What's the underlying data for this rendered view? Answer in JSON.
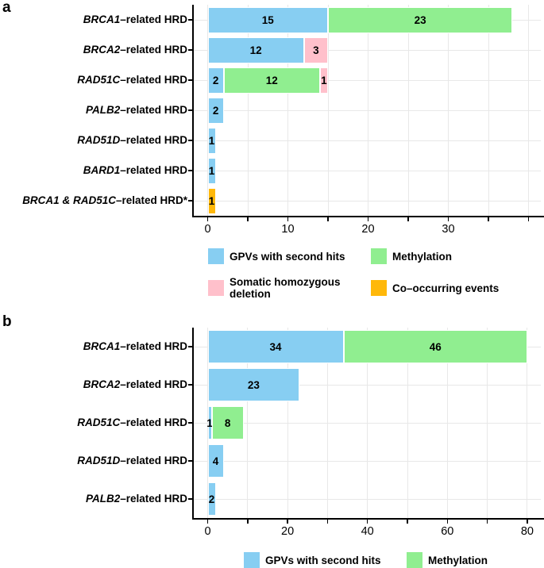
{
  "chart_data": [
    {
      "type": "bar",
      "panel": "a",
      "orientation": "horizontal",
      "stacked": true,
      "grid": true,
      "legend_position": "bottom",
      "categories": [
        {
          "gene": "BRCA1",
          "suffix": "–related HRD"
        },
        {
          "gene": "BRCA2",
          "suffix": "–related HRD"
        },
        {
          "gene": "RAD51C",
          "suffix": "–related HRD"
        },
        {
          "gene": "PALB2",
          "suffix": "–related HRD"
        },
        {
          "gene": "RAD51D",
          "suffix": "–related HRD"
        },
        {
          "gene": "BARD1",
          "suffix": "–related HRD"
        },
        {
          "gene": "BRCA1 & RAD51C",
          "suffix": "–related HRD*"
        }
      ],
      "series": [
        {
          "name": "GPVs with second hits",
          "color": "#87CEF2",
          "values": [
            15,
            12,
            2,
            2,
            1,
            1,
            0
          ]
        },
        {
          "name": "Methylation",
          "color": "#90EE90",
          "values": [
            23,
            0,
            12,
            0,
            0,
            0,
            0
          ]
        },
        {
          "name": "Somatic homozygous deletion",
          "color": "#FFC0CB",
          "values": [
            0,
            3,
            1,
            0,
            0,
            0,
            0
          ]
        },
        {
          "name": "Co–occurring events",
          "color": "#FFB80A",
          "values": [
            0,
            0,
            0,
            0,
            0,
            0,
            1
          ]
        }
      ],
      "x_tick_labels": [
        0,
        10,
        20,
        30
      ],
      "x_grid_step": 5,
      "x_max": 40,
      "xlim": [
        0,
        41.5
      ],
      "legend": [
        {
          "label": "GPVs with second hits",
          "color": "#87CEF2"
        },
        {
          "label": "Methylation",
          "color": "#90EE90"
        },
        {
          "label": "Somatic homozygous\ndeletion",
          "color": "#FFC0CB"
        },
        {
          "label": "Co–occurring events",
          "color": "#FFB80A"
        }
      ]
    },
    {
      "type": "bar",
      "panel": "b",
      "orientation": "horizontal",
      "stacked": true,
      "grid": true,
      "legend_position": "bottom",
      "categories": [
        {
          "gene": "BRCA1",
          "suffix": "–related HRD"
        },
        {
          "gene": "BRCA2",
          "suffix": "–related HRD"
        },
        {
          "gene": "RAD51C",
          "suffix": "–related HRD"
        },
        {
          "gene": "RAD51D",
          "suffix": "–related HRD"
        },
        {
          "gene": "PALB2",
          "suffix": "–related HRD"
        }
      ],
      "series": [
        {
          "name": "GPVs with second hits",
          "color": "#87CEF2",
          "values": [
            34,
            23,
            1,
            4,
            2
          ]
        },
        {
          "name": "Methylation",
          "color": "#90EE90",
          "values": [
            46,
            0,
            8,
            0,
            0
          ]
        }
      ],
      "x_tick_labels": [
        0,
        20,
        40,
        60,
        80
      ],
      "x_grid_step": 10,
      "x_max": 80,
      "xlim": [
        0,
        82.5
      ],
      "legend": [
        {
          "label": "GPVs with second hits",
          "color": "#87CEF2"
        },
        {
          "label": "Methylation",
          "color": "#90EE90"
        }
      ]
    }
  ],
  "colors": {
    "gpv_blue": "#87CEF2",
    "methylation_green": "#90EE90",
    "somatic_deletion_pink": "#FFC0CB",
    "co_occurring_orange": "#FFB80A",
    "gridline_gray": "#e8e8e8",
    "axis_black": "#000000"
  }
}
